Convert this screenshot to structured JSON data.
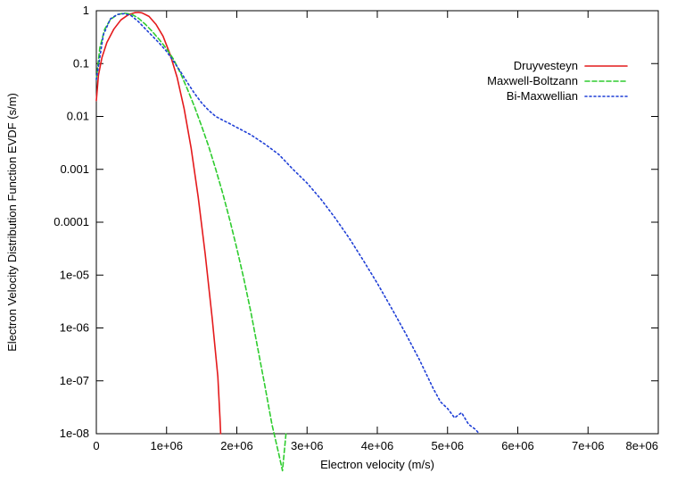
{
  "chart_data": {
    "type": "line",
    "title": "",
    "xlabel": "Electron velocity (m/s)",
    "ylabel": "Electron Velocity Distribution Function EVDF (s/m)",
    "x_scale": "linear",
    "y_scale": "log",
    "xlim": [
      0,
      8000000
    ],
    "ylim": [
      1e-08,
      1
    ],
    "grid": false,
    "legend_position": "top-right",
    "x_ticks": [
      {
        "value": 0,
        "label": "0"
      },
      {
        "value": 1000000,
        "label": "1e+06"
      },
      {
        "value": 2000000,
        "label": "2e+06"
      },
      {
        "value": 3000000,
        "label": "3e+06"
      },
      {
        "value": 4000000,
        "label": "4e+06"
      },
      {
        "value": 5000000,
        "label": "5e+06"
      },
      {
        "value": 6000000,
        "label": "6e+06"
      },
      {
        "value": 7000000,
        "label": "7e+06"
      },
      {
        "value": 8000000,
        "label": "8e+06"
      }
    ],
    "y_ticks": [
      {
        "value": 1,
        "label": "1"
      },
      {
        "value": 0.1,
        "label": "0.1"
      },
      {
        "value": 0.01,
        "label": "0.01"
      },
      {
        "value": 0.001,
        "label": "0.001"
      },
      {
        "value": 0.0001,
        "label": "0.0001"
      },
      {
        "value": 1e-05,
        "label": "1e-05"
      },
      {
        "value": 1e-06,
        "label": "1e-06"
      },
      {
        "value": 1e-07,
        "label": "1e-07"
      },
      {
        "value": 1e-08,
        "label": "1e-08"
      }
    ],
    "series": [
      {
        "name": "Druyvesteyn",
        "color": "#e41a1c",
        "dash": "solid",
        "points": [
          [
            0,
            0.02
          ],
          [
            30000,
            0.06
          ],
          [
            80000,
            0.13
          ],
          [
            150000,
            0.25
          ],
          [
            250000,
            0.45
          ],
          [
            350000,
            0.67
          ],
          [
            450000,
            0.83
          ],
          [
            550000,
            0.92
          ],
          [
            600000,
            0.93
          ],
          [
            650000,
            0.91
          ],
          [
            750000,
            0.78
          ],
          [
            850000,
            0.55
          ],
          [
            950000,
            0.33
          ],
          [
            1050000,
            0.15
          ],
          [
            1150000,
            0.055
          ],
          [
            1250000,
            0.014
          ],
          [
            1350000,
            0.0025
          ],
          [
            1450000,
            0.0003
          ],
          [
            1550000,
            2.5e-05
          ],
          [
            1650000,
            1.5e-06
          ],
          [
            1730000,
            1.2e-07
          ],
          [
            1760000,
            2e-08
          ],
          [
            1770000,
            1e-08
          ]
        ]
      },
      {
        "name": "Maxwell-Boltzann",
        "color": "#2ecc2e",
        "dash": "dashed",
        "points": [
          [
            0,
            0.05
          ],
          [
            50000,
            0.2
          ],
          [
            120000,
            0.45
          ],
          [
            200000,
            0.68
          ],
          [
            300000,
            0.85
          ],
          [
            400000,
            0.9
          ],
          [
            500000,
            0.86
          ],
          [
            600000,
            0.72
          ],
          [
            700000,
            0.55
          ],
          [
            800000,
            0.4
          ],
          [
            900000,
            0.28
          ],
          [
            1000000,
            0.19
          ],
          [
            1100000,
            0.12
          ],
          [
            1200000,
            0.065
          ],
          [
            1300000,
            0.032
          ],
          [
            1400000,
            0.015
          ],
          [
            1500000,
            0.0065
          ],
          [
            1600000,
            0.0027
          ],
          [
            1700000,
            0.001
          ],
          [
            1800000,
            0.00035
          ],
          [
            1900000,
            0.00011
          ],
          [
            2000000,
            3.2e-05
          ],
          [
            2100000,
            8.5e-06
          ],
          [
            2200000,
            2e-06
          ],
          [
            2300000,
            4e-07
          ],
          [
            2400000,
            8e-08
          ],
          [
            2500000,
            1.5e-08
          ],
          [
            2600000,
            4e-09
          ],
          [
            2650000,
            2e-09
          ],
          [
            2700000,
            1e-08
          ]
        ]
      },
      {
        "name": "Bi-Maxwellian",
        "color": "#1f3fd6",
        "dash": "dotted",
        "points": [
          [
            0,
            0.05
          ],
          [
            100000,
            0.35
          ],
          [
            200000,
            0.7
          ],
          [
            300000,
            0.85
          ],
          [
            400000,
            0.88
          ],
          [
            500000,
            0.8
          ],
          [
            600000,
            0.62
          ],
          [
            700000,
            0.45
          ],
          [
            800000,
            0.33
          ],
          [
            900000,
            0.24
          ],
          [
            1000000,
            0.17
          ],
          [
            1100000,
            0.11
          ],
          [
            1200000,
            0.07
          ],
          [
            1300000,
            0.043
          ],
          [
            1400000,
            0.027
          ],
          [
            1500000,
            0.018
          ],
          [
            1600000,
            0.013
          ],
          [
            1700000,
            0.01
          ],
          [
            1800000,
            0.0085
          ],
          [
            1900000,
            0.0073
          ],
          [
            2000000,
            0.0062
          ],
          [
            2200000,
            0.0045
          ],
          [
            2400000,
            0.003
          ],
          [
            2600000,
            0.0019
          ],
          [
            2800000,
            0.001
          ],
          [
            3000000,
            0.00055
          ],
          [
            3200000,
            0.00027
          ],
          [
            3400000,
            0.00012
          ],
          [
            3600000,
            5e-05
          ],
          [
            3800000,
            1.9e-05
          ],
          [
            4000000,
            7e-06
          ],
          [
            4200000,
            2.4e-06
          ],
          [
            4400000,
            8e-07
          ],
          [
            4600000,
            2.5e-07
          ],
          [
            4800000,
            7e-08
          ],
          [
            4900000,
            4e-08
          ],
          [
            5000000,
            3e-08
          ],
          [
            5100000,
            2e-08
          ],
          [
            5200000,
            2.5e-08
          ],
          [
            5300000,
            1.5e-08
          ],
          [
            5400000,
            1.2e-08
          ],
          [
            5450000,
            1e-08
          ]
        ]
      }
    ]
  }
}
